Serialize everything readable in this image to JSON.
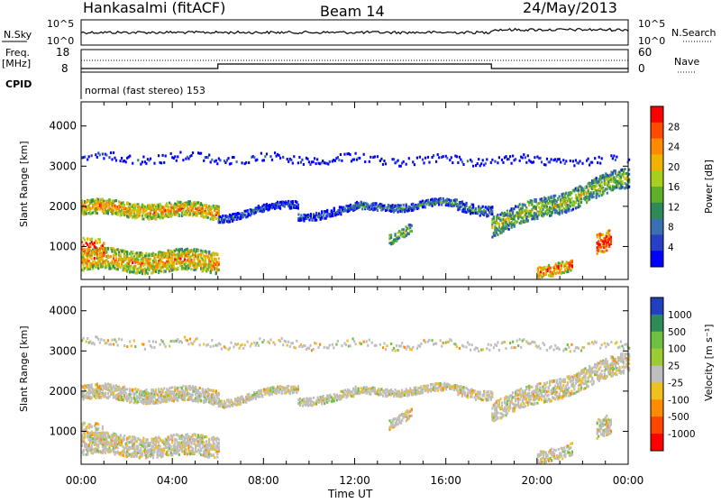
{
  "header": {
    "radar": "Hankasalmi (fitACF)",
    "beam": "Beam 14",
    "date": "24/May/2013"
  },
  "top_panel": {
    "left_label": "N.Sky",
    "left_ticks": [
      "10^5",
      "10^0"
    ],
    "right_label": "N.Search",
    "right_ticks": [
      "10^5",
      "10^0"
    ]
  },
  "freq_panel": {
    "left_label_line1": "Freq.",
    "left_label_line2": "[MHz]",
    "left_ticks": [
      "18",
      "8"
    ],
    "right_label": "Nave",
    "right_ticks": [
      "60",
      "0"
    ],
    "cpid_label": "CPID",
    "cpid_text": "normal (fast stereo) 153"
  },
  "chart_data": [
    {
      "type": "heatmap",
      "name": "Power",
      "ylabel": "Slant Range [km]",
      "xlabel": "Time UT",
      "x_ticks": [
        "00:00",
        "04:00",
        "08:00",
        "12:00",
        "16:00",
        "20:00",
        "00:00"
      ],
      "y_ticks": [
        1000,
        2000,
        3000,
        4000
      ],
      "ylim": [
        180,
        4600
      ],
      "xlim_hours": [
        0,
        24
      ],
      "colorbar": {
        "label": "Power [dB]",
        "ticks": [
          "28",
          "24",
          "20",
          "16",
          "12",
          "8",
          "4"
        ],
        "colors": [
          "#ff0000",
          "#ff4a00",
          "#ff8a00",
          "#f0b400",
          "#a8cf1f",
          "#5faf2a",
          "#2e8b57",
          "#3a6fb0",
          "#2840c8",
          "#0000ff"
        ]
      },
      "regions": [
        {
          "t0": 0.0,
          "t1": 6.0,
          "r0": 1750,
          "r1": 2100,
          "level": "high"
        },
        {
          "t0": 0.0,
          "t1": 6.0,
          "r0": 400,
          "r1": 900,
          "level": "high"
        },
        {
          "t0": 6.0,
          "t1": 18.0,
          "r0": 1500,
          "r1": 2200,
          "level": "low"
        },
        {
          "t0": 18.0,
          "t1": 24.0,
          "r0": 1400,
          "r1": 2800,
          "level": "mid"
        },
        {
          "t0": 22.6,
          "t1": 23.2,
          "r0": 800,
          "r1": 1400,
          "level": "high"
        }
      ]
    },
    {
      "type": "heatmap",
      "name": "Velocity",
      "ylabel": "Slant Range [km]",
      "xlabel": "Time UT",
      "x_ticks": [
        "00:00",
        "04:00",
        "08:00",
        "12:00",
        "16:00",
        "20:00",
        "00:00"
      ],
      "y_ticks": [
        1000,
        2000,
        3000,
        4000
      ],
      "ylim": [
        180,
        4600
      ],
      "colorbar": {
        "label": "Velocity [m s⁻¹]",
        "ticks": [
          "1000",
          "500",
          "100",
          "25",
          "-25",
          "-100",
          "-500",
          "-1000"
        ],
        "colors": [
          "#2040c0",
          "#2e8b57",
          "#6fc040",
          "#9acd32",
          "#bebebe",
          "#f0c020",
          "#ff8c00",
          "#ff4500",
          "#ff0000"
        ]
      }
    }
  ],
  "x_axis_title": "Time UT"
}
